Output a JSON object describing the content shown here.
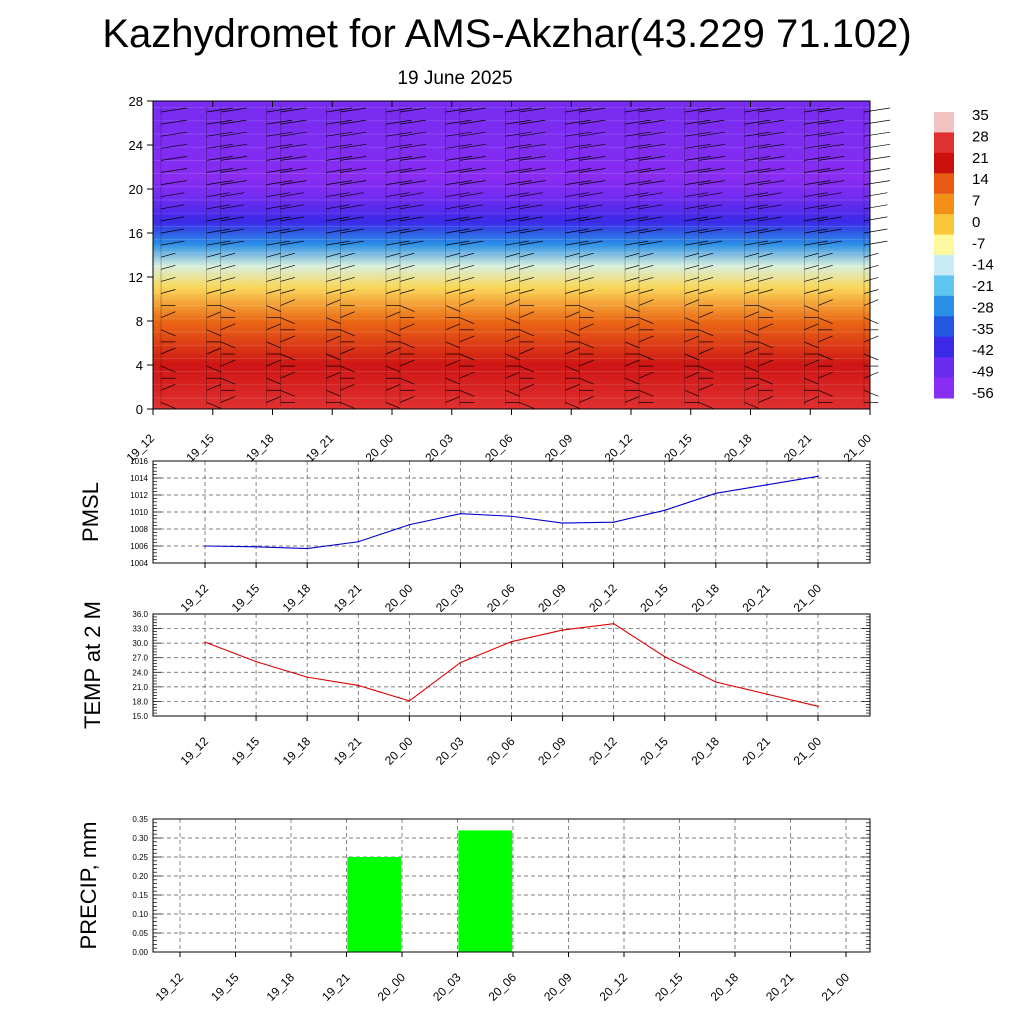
{
  "header": {
    "title": "Kazhydromet for AMS-Akzhar(43.229 71.102)",
    "subtitle": "19 June 2025"
  },
  "colorbar": {
    "labels": [
      "35",
      "28",
      "21",
      "14",
      "7",
      "0",
      "-7",
      "-14",
      "-21",
      "-28",
      "-35",
      "-42",
      "-49",
      "-56"
    ],
    "colors": [
      "#f2c2c2",
      "#e03030",
      "#cc1010",
      "#e85a14",
      "#f49018",
      "#f9c83a",
      "#fdf8a0",
      "#c8ecf6",
      "#5ec6ee",
      "#2a8ee6",
      "#2456e2",
      "#3a2ae8",
      "#6a2cf0",
      "#8a2cf2"
    ]
  },
  "chart_data": [
    {
      "type": "heatmap",
      "name": "cross-section",
      "x": [
        "19_12",
        "19_15",
        "19_18",
        "19_21",
        "20_00",
        "20_03",
        "20_06",
        "20_09",
        "20_12",
        "20_15",
        "20_18",
        "20_21",
        "21_00"
      ],
      "ylim": [
        0,
        28
      ],
      "yticks": [
        "0",
        "4",
        "8",
        "12",
        "16",
        "20",
        "24",
        "28"
      ],
      "levels": [
        {
          "y": 0,
          "value": 28
        },
        {
          "y": 4,
          "value": 22
        },
        {
          "y": 8,
          "value": 12
        },
        {
          "y": 11,
          "value": -2
        },
        {
          "y": 13,
          "value": -12
        },
        {
          "y": 15,
          "value": -28
        },
        {
          "y": 17,
          "value": -42
        },
        {
          "y": 19.5,
          "value": -52
        },
        {
          "y": 21,
          "value": -58
        },
        {
          "y": 23,
          "value": -54
        },
        {
          "y": 28,
          "value": -52
        }
      ],
      "grid": false
    },
    {
      "type": "line",
      "ylabel": "PMSL",
      "x": [
        "19_12",
        "19_15",
        "19_18",
        "19_21",
        "20_00",
        "20_03",
        "20_06",
        "20_09",
        "20_12",
        "20_15",
        "20_18",
        "20_21",
        "21_00"
      ],
      "series": [
        {
          "values": [
            1006.0,
            1005.9,
            1005.7,
            1006.5,
            1008.5,
            1009.8,
            1009.5,
            1008.7,
            1008.8,
            1010.2,
            1012.2,
            1013.2,
            1014.2
          ],
          "color": "#0000cc"
        }
      ],
      "ylim": [
        1004,
        1016
      ],
      "yticks": [
        "1004",
        "1006",
        "1008",
        "1010",
        "1012",
        "1014",
        "1016"
      ],
      "grid": true
    },
    {
      "type": "line",
      "ylabel": "TEMP at 2 M",
      "x": [
        "19_12",
        "19_15",
        "19_18",
        "19_21",
        "20_00",
        "20_03",
        "20_06",
        "20_09",
        "20_12",
        "20_15",
        "20_18",
        "20_21",
        "21_00"
      ],
      "series": [
        {
          "values": [
            30.2,
            26.2,
            23.0,
            21.3,
            18.1,
            26.0,
            30.3,
            32.7,
            34.0,
            27.2,
            22.0,
            19.5,
            17.0
          ],
          "color": "#dd0000"
        }
      ],
      "ylim": [
        15,
        36
      ],
      "yticks": [
        "15.0",
        "18.0",
        "21.0",
        "24.0",
        "27.0",
        "30.0",
        "33.0",
        "36.0"
      ],
      "grid": true
    },
    {
      "type": "bar",
      "ylabel": "PRECIP, mm",
      "categories": [
        "19_12",
        "19_15",
        "19_18",
        "19_21",
        "20_00",
        "20_03",
        "20_06",
        "20_09",
        "20_12",
        "20_15",
        "20_18",
        "20_21",
        "21_00"
      ],
      "values": [
        0,
        0,
        0,
        0.25,
        0,
        0.32,
        0,
        0,
        0,
        0,
        0,
        0,
        0
      ],
      "color": "#00ff00",
      "ylim": [
        0,
        0.35
      ],
      "yticks": [
        "0.00",
        "0.05",
        "0.10",
        "0.15",
        "0.20",
        "0.25",
        "0.30",
        "0.35"
      ],
      "grid": true
    }
  ]
}
